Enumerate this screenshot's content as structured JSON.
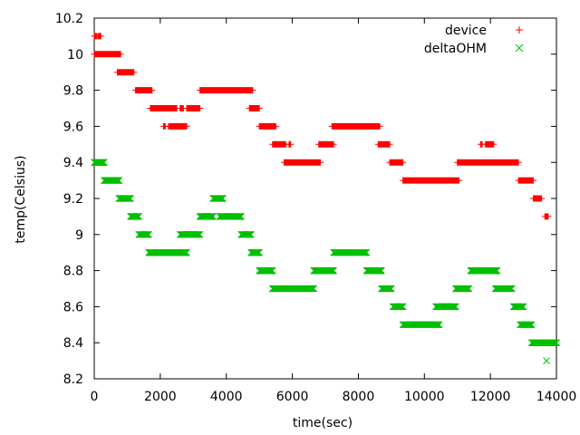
{
  "chart_data": {
    "type": "scatter",
    "title": "",
    "xlabel": "time(sec)",
    "ylabel": "temp(Celsius)",
    "xlim": [
      0,
      14000
    ],
    "ylim": [
      8.2,
      10.2
    ],
    "xticks": [
      "0",
      "2000",
      "4000",
      "6000",
      "8000",
      "10000",
      "12000",
      "14000"
    ],
    "yticks": [
      "8.2",
      "8.4",
      "8.6",
      "8.8",
      "9",
      "9.2",
      "9.4",
      "9.6",
      "9.8",
      "10",
      "10.2"
    ],
    "grid": false,
    "legend_position": "top-right",
    "series": [
      {
        "name": "device",
        "marker": "plus",
        "color": "#ff0000",
        "segments": [
          {
            "x0": 0,
            "x1": 80,
            "y": 10.1
          },
          {
            "x0": 120,
            "x1": 200,
            "y": 10.1
          },
          {
            "x0": 0,
            "x1": 800,
            "y": 10.0
          },
          {
            "x0": 700,
            "x1": 1200,
            "y": 9.9
          },
          {
            "x0": 1250,
            "x1": 1750,
            "y": 9.8
          },
          {
            "x0": 1700,
            "x1": 2350,
            "y": 9.7
          },
          {
            "x0": 2350,
            "x1": 2500,
            "y": 9.7
          },
          {
            "x0": 2600,
            "x1": 2700,
            "y": 9.7
          },
          {
            "x0": 2800,
            "x1": 3200,
            "y": 9.7
          },
          {
            "x0": 2100,
            "x1": 2150,
            "y": 9.6
          },
          {
            "x0": 2250,
            "x1": 2800,
            "y": 9.6
          },
          {
            "x0": 3200,
            "x1": 4800,
            "y": 9.8
          },
          {
            "x0": 4700,
            "x1": 5000,
            "y": 9.7
          },
          {
            "x0": 5000,
            "x1": 5500,
            "y": 9.6
          },
          {
            "x0": 5400,
            "x1": 5500,
            "y": 9.5
          },
          {
            "x0": 5500,
            "x1": 5800,
            "y": 9.5
          },
          {
            "x0": 5900,
            "x1": 5950,
            "y": 9.5
          },
          {
            "x0": 5750,
            "x1": 6850,
            "y": 9.4
          },
          {
            "x0": 6800,
            "x1": 7250,
            "y": 9.5
          },
          {
            "x0": 7200,
            "x1": 8650,
            "y": 9.6
          },
          {
            "x0": 8600,
            "x1": 8950,
            "y": 9.5
          },
          {
            "x0": 8950,
            "x1": 9350,
            "y": 9.4
          },
          {
            "x0": 9350,
            "x1": 11050,
            "y": 9.3
          },
          {
            "x0": 11000,
            "x1": 12850,
            "y": 9.4
          },
          {
            "x0": 11700,
            "x1": 11750,
            "y": 9.5
          },
          {
            "x0": 11850,
            "x1": 12100,
            "y": 9.5
          },
          {
            "x0": 12850,
            "x1": 13300,
            "y": 9.3
          },
          {
            "x0": 13300,
            "x1": 13550,
            "y": 9.2
          },
          {
            "x0": 13650,
            "x1": 13750,
            "y": 9.1
          }
        ]
      },
      {
        "name": "deltaOHM",
        "marker": "cross",
        "color": "#00c000",
        "segments": [
          {
            "x0": 0,
            "x1": 300,
            "y": 9.4
          },
          {
            "x0": 300,
            "x1": 750,
            "y": 9.3
          },
          {
            "x0": 750,
            "x1": 1100,
            "y": 9.2
          },
          {
            "x0": 1100,
            "x1": 1350,
            "y": 9.1
          },
          {
            "x0": 1350,
            "x1": 1650,
            "y": 9.0
          },
          {
            "x0": 1650,
            "x1": 2800,
            "y": 8.9
          },
          {
            "x0": 2600,
            "x1": 3200,
            "y": 9.0
          },
          {
            "x0": 3200,
            "x1": 3600,
            "y": 9.1
          },
          {
            "x0": 3600,
            "x1": 3900,
            "y": 9.2
          },
          {
            "x0": 3800,
            "x1": 4450,
            "y": 9.1
          },
          {
            "x0": 4450,
            "x1": 4750,
            "y": 9.0
          },
          {
            "x0": 4750,
            "x1": 5000,
            "y": 8.9
          },
          {
            "x0": 5000,
            "x1": 5400,
            "y": 8.8
          },
          {
            "x0": 5400,
            "x1": 6650,
            "y": 8.7
          },
          {
            "x0": 6650,
            "x1": 7250,
            "y": 8.8
          },
          {
            "x0": 7250,
            "x1": 8250,
            "y": 8.9
          },
          {
            "x0": 8250,
            "x1": 8700,
            "y": 8.8
          },
          {
            "x0": 8700,
            "x1": 9000,
            "y": 8.7
          },
          {
            "x0": 9050,
            "x1": 9350,
            "y": 8.6
          },
          {
            "x0": 9350,
            "x1": 10450,
            "y": 8.5
          },
          {
            "x0": 10350,
            "x1": 10950,
            "y": 8.6
          },
          {
            "x0": 10950,
            "x1": 11350,
            "y": 8.7
          },
          {
            "x0": 11400,
            "x1": 12200,
            "y": 8.8
          },
          {
            "x0": 12150,
            "x1": 12650,
            "y": 8.7
          },
          {
            "x0": 12700,
            "x1": 13000,
            "y": 8.6
          },
          {
            "x0": 12900,
            "x1": 13250,
            "y": 8.5
          },
          {
            "x0": 13250,
            "x1": 14000,
            "y": 8.4
          },
          {
            "x0": 13700,
            "x1": 13700,
            "y": 8.3
          }
        ]
      }
    ]
  }
}
